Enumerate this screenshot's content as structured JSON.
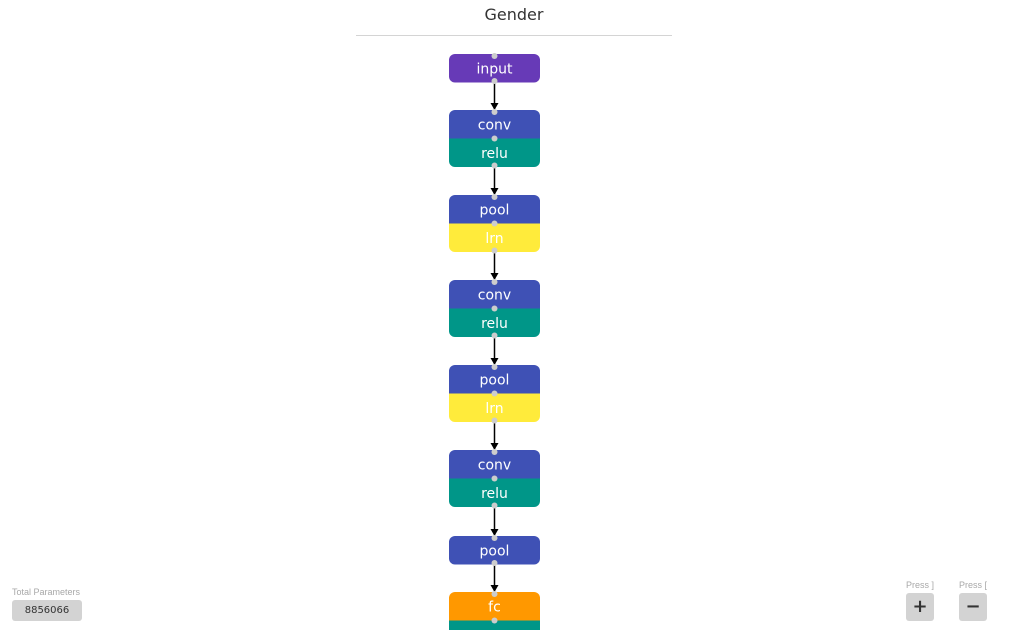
{
  "title": "Gender",
  "colors": {
    "input": "#673ab7",
    "conv": "#3f51b5",
    "relu": "#009688",
    "pool": "#3f51b5",
    "lrn": "#ffeb3b",
    "fc": "#ff9800",
    "edge": "#000000",
    "port": "#cccccc"
  },
  "diagram": {
    "nodes": [
      {
        "id": "input",
        "layers": [
          {
            "label": "input",
            "type": "input"
          }
        ]
      },
      {
        "id": "conv1",
        "layers": [
          {
            "label": "conv",
            "type": "conv"
          },
          {
            "label": "relu",
            "type": "relu"
          }
        ]
      },
      {
        "id": "pool1",
        "layers": [
          {
            "label": "pool",
            "type": "pool"
          },
          {
            "label": "lrn",
            "type": "lrn"
          }
        ]
      },
      {
        "id": "conv2",
        "layers": [
          {
            "label": "conv",
            "type": "conv"
          },
          {
            "label": "relu",
            "type": "relu"
          }
        ]
      },
      {
        "id": "pool2",
        "layers": [
          {
            "label": "pool",
            "type": "pool"
          },
          {
            "label": "lrn",
            "type": "lrn"
          }
        ]
      },
      {
        "id": "conv3",
        "layers": [
          {
            "label": "conv",
            "type": "conv"
          },
          {
            "label": "relu",
            "type": "relu"
          }
        ]
      },
      {
        "id": "pool3",
        "layers": [
          {
            "label": "pool",
            "type": "pool"
          }
        ]
      },
      {
        "id": "fc1",
        "layers": [
          {
            "label": "fc",
            "type": "fc"
          },
          {
            "label": "",
            "type": "relu"
          }
        ]
      }
    ],
    "edges": [
      [
        "input",
        "conv1"
      ],
      [
        "conv1",
        "pool1"
      ],
      [
        "pool1",
        "conv2"
      ],
      [
        "conv2",
        "pool2"
      ],
      [
        "pool2",
        "conv3"
      ],
      [
        "conv3",
        "pool3"
      ],
      [
        "pool3",
        "fc1"
      ]
    ]
  },
  "footer": {
    "params_label": "Total Parameters",
    "params_value": "8856066",
    "zoom_in_hint": "Press ]",
    "zoom_in_label": "+",
    "zoom_out_hint": "Press [",
    "zoom_out_label": "−"
  }
}
